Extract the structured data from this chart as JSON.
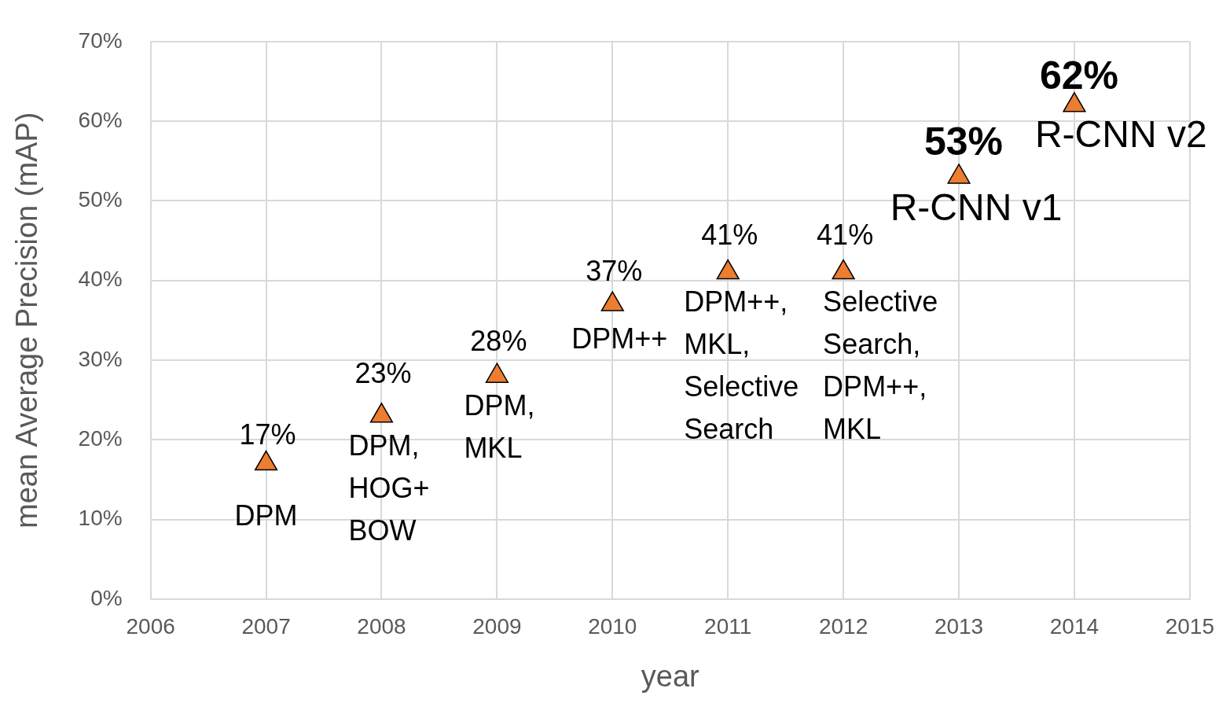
{
  "chart_data": {
    "type": "scatter",
    "xlabel": "year",
    "ylabel": "mean Average Precision (mAP)",
    "x": [
      2007,
      2008,
      2009,
      2010,
      2011,
      2012,
      2013,
      2014
    ],
    "series": [
      {
        "color": "#ed7d31",
        "values": [
          17,
          23,
          28,
          37,
          41,
          41,
          53,
          62
        ],
        "value_labels": [
          "17%",
          "23%",
          "28%",
          "37%",
          "41%",
          "41%",
          "53%",
          "62%"
        ]
      }
    ],
    "xlim": [
      2006,
      2015
    ],
    "xticks": [
      2006,
      2007,
      2008,
      2009,
      2010,
      2011,
      2012,
      2013,
      2014,
      2015
    ],
    "ylim": [
      0,
      70
    ],
    "yticks": [
      {
        "value": 0,
        "label": "0%"
      },
      {
        "value": 10,
        "label": "10%"
      },
      {
        "value": 20,
        "label": "20%"
      },
      {
        "value": 30,
        "label": "30%"
      },
      {
        "value": 40,
        "label": "40%"
      },
      {
        "value": 50,
        "label": "50%"
      },
      {
        "value": 60,
        "label": "60%"
      },
      {
        "value": 70,
        "label": "70%"
      }
    ],
    "grid": true,
    "marker": "triangle",
    "legend": false,
    "annotations": [
      {
        "text": "DPM",
        "x": 2007,
        "y": 17
      },
      {
        "text": "DPM,\nHOG+\nBOW",
        "x": 2008,
        "y": 23
      },
      {
        "text": "DPM,\nMKL",
        "x": 2009,
        "y": 28
      },
      {
        "text": "DPM++",
        "x": 2010,
        "y": 37
      },
      {
        "text": "DPM++,\nMKL,\nSelective\nSearch",
        "x": 2011,
        "y": 41
      },
      {
        "text": "Selective\nSearch,\nDPM++,\nMKL",
        "x": 2012,
        "y": 41
      },
      {
        "text": "R-CNN v1",
        "x": 2013,
        "y": 53
      },
      {
        "text": "R-CNN v2",
        "x": 2014,
        "y": 62
      }
    ]
  }
}
